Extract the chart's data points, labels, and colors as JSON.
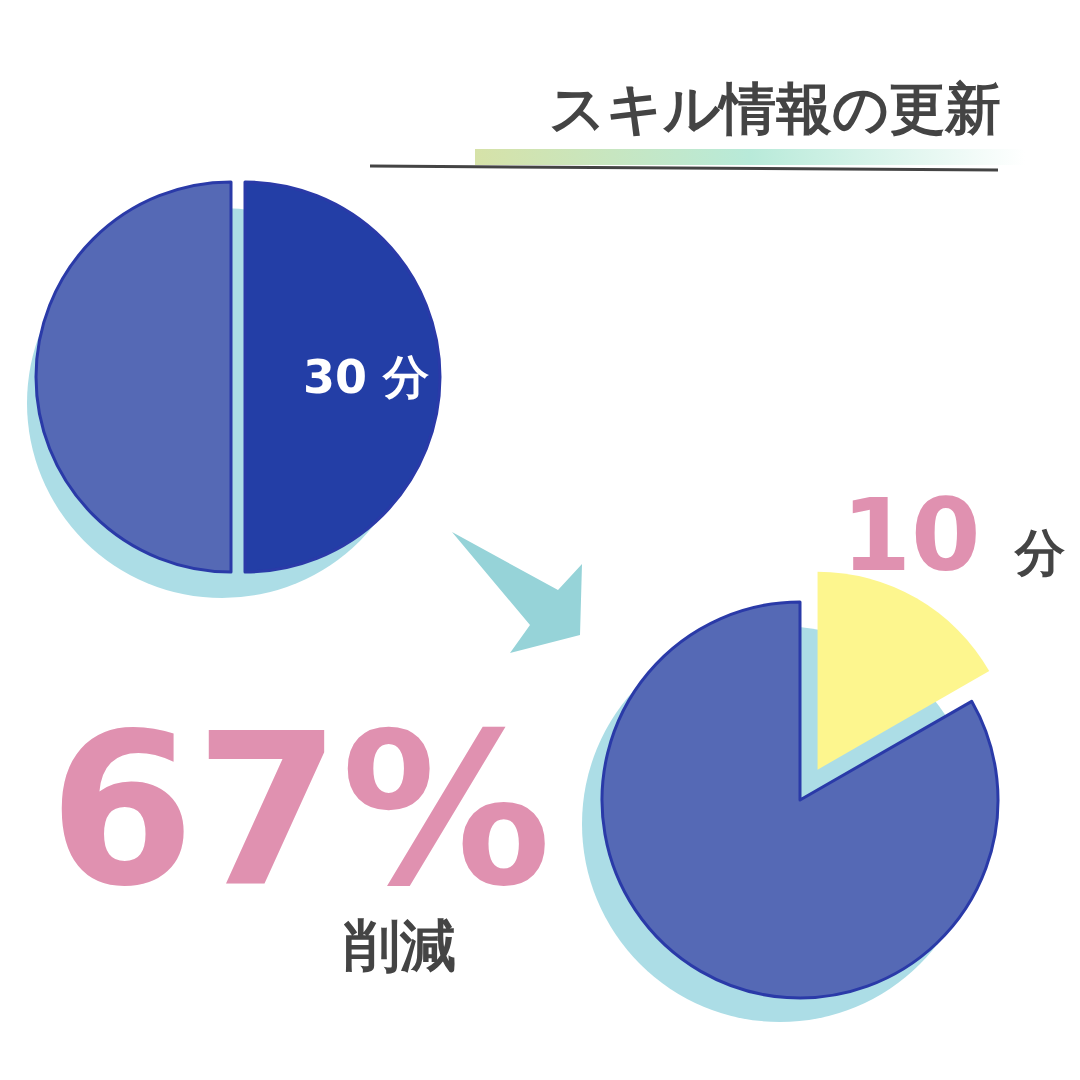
{
  "chart_data": [
    {
      "type": "pie",
      "title": "スキル情報の更新",
      "categories": [
        "30 分",
        null
      ],
      "values": [
        50,
        50
      ],
      "colors": [
        "#233ea6",
        "#5569b5"
      ]
    },
    {
      "type": "pie",
      "categories": [
        "10 分",
        null
      ],
      "values": [
        16.7,
        83.3
      ],
      "colors": [
        "#fdf68e",
        "#5569b5"
      ],
      "annotations": [
        "67%",
        "削減"
      ]
    }
  ]
}
